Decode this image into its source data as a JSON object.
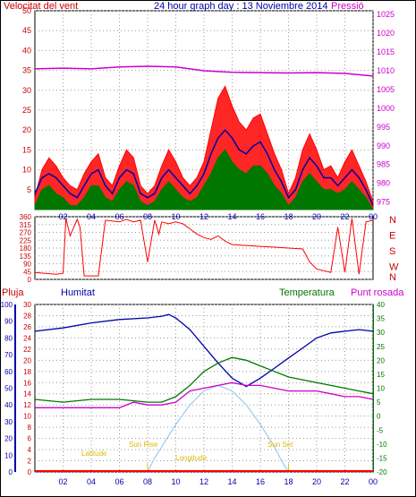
{
  "header": {
    "wind_label": "Velocitat del vent",
    "title": "24 hour graph day : 13 Noviembre 2014",
    "pressure_label": "Pressió"
  },
  "legend": {
    "rain": "Pluja",
    "humidity": "Humitat",
    "temperature": "Temperatura",
    "dewpoint": "Punt rosada"
  },
  "annotations": {
    "sunrise": "Sun Rise",
    "sunset": "Sun Set",
    "altitude": "Latitude",
    "elevation": "Longitude"
  },
  "colors": {
    "wind": "#ff0000",
    "gust_fill": "#ff0000",
    "wind_avg": "#0000aa",
    "wind_min": "#007700",
    "pressure": "#cc00cc",
    "humidity": "#0000aa",
    "temperature": "#007700",
    "dewpoint": "#cc00cc",
    "rain": "#ff0000",
    "sun": "#99ccee",
    "sun_text": "#ddbb00",
    "axis_red": "#cc0000",
    "axis_blue": "#0000aa",
    "axis_green": "#007700",
    "axis_purple": "#cc00cc",
    "grid": "#999999"
  },
  "chart_data": [
    {
      "type": "line",
      "name": "wind-pressure",
      "x_ticks": [
        "02",
        "04",
        "06",
        "08",
        "10",
        "12",
        "14",
        "16",
        "18",
        "20",
        "22",
        "00"
      ],
      "y_left_ticks": [
        5,
        10,
        15,
        20,
        25,
        30,
        35,
        40,
        45,
        50
      ],
      "y_left_range": [
        0,
        50
      ],
      "y_right_ticks": [
        975,
        980,
        985,
        990,
        995,
        1000,
        1005,
        1010,
        1015,
        1020,
        1025
      ],
      "y_right_range": [
        973,
        1026
      ],
      "gust_envelope": [
        [
          0,
          3
        ],
        [
          0.5,
          10
        ],
        [
          1,
          13
        ],
        [
          1.5,
          11
        ],
        [
          2,
          8
        ],
        [
          2.5,
          6
        ],
        [
          3,
          5
        ],
        [
          3.5,
          9
        ],
        [
          4,
          12
        ],
        [
          4.5,
          14
        ],
        [
          5,
          8
        ],
        [
          5.5,
          6
        ],
        [
          6,
          11
        ],
        [
          6.5,
          15
        ],
        [
          7,
          13
        ],
        [
          7.5,
          6
        ],
        [
          8,
          4
        ],
        [
          8.5,
          6
        ],
        [
          9,
          11
        ],
        [
          9.5,
          15
        ],
        [
          10,
          12
        ],
        [
          10.5,
          8
        ],
        [
          11,
          6
        ],
        [
          11.5,
          8
        ],
        [
          12,
          12
        ],
        [
          12.5,
          20
        ],
        [
          13,
          28
        ],
        [
          13.5,
          31
        ],
        [
          14,
          26
        ],
        [
          14.5,
          22
        ],
        [
          15,
          20
        ],
        [
          15.5,
          23
        ],
        [
          16,
          24
        ],
        [
          16.5,
          19
        ],
        [
          17,
          14
        ],
        [
          17.5,
          10
        ],
        [
          18,
          4
        ],
        [
          18.5,
          8
        ],
        [
          19,
          15
        ],
        [
          19.5,
          19
        ],
        [
          20,
          15
        ],
        [
          20.5,
          10
        ],
        [
          21,
          11
        ],
        [
          21.5,
          8
        ],
        [
          22,
          12
        ],
        [
          22.5,
          15
        ],
        [
          23,
          11
        ],
        [
          23.5,
          7
        ],
        [
          24,
          2
        ]
      ],
      "wind_avg": [
        [
          0,
          4
        ],
        [
          0.5,
          8
        ],
        [
          1,
          9
        ],
        [
          1.5,
          8
        ],
        [
          2,
          6
        ],
        [
          2.5,
          4
        ],
        [
          3,
          3
        ],
        [
          3.5,
          6
        ],
        [
          4,
          9
        ],
        [
          4.5,
          10
        ],
        [
          5,
          6
        ],
        [
          5.5,
          4
        ],
        [
          6,
          8
        ],
        [
          6.5,
          10
        ],
        [
          7,
          9
        ],
        [
          7.5,
          4
        ],
        [
          8,
          3
        ],
        [
          8.5,
          4
        ],
        [
          9,
          8
        ],
        [
          9.5,
          10
        ],
        [
          10,
          8
        ],
        [
          10.5,
          6
        ],
        [
          11,
          4
        ],
        [
          11.5,
          6
        ],
        [
          12,
          9
        ],
        [
          12.5,
          14
        ],
        [
          13,
          18
        ],
        [
          13.5,
          20
        ],
        [
          14,
          18
        ],
        [
          14.5,
          15
        ],
        [
          15,
          14
        ],
        [
          15.5,
          16
        ],
        [
          16,
          17
        ],
        [
          16.5,
          14
        ],
        [
          17,
          10
        ],
        [
          17.5,
          7
        ],
        [
          18,
          3
        ],
        [
          18.5,
          5
        ],
        [
          19,
          10
        ],
        [
          19.5,
          13
        ],
        [
          20,
          11
        ],
        [
          20.5,
          8
        ],
        [
          21,
          8
        ],
        [
          21.5,
          6
        ],
        [
          22,
          8
        ],
        [
          22.5,
          10
        ],
        [
          23,
          8
        ],
        [
          23.5,
          5
        ],
        [
          24,
          1
        ]
      ],
      "wind_min": [
        [
          0,
          1
        ],
        [
          0.5,
          5
        ],
        [
          1,
          6
        ],
        [
          1.5,
          4
        ],
        [
          2,
          3
        ],
        [
          2.5,
          1
        ],
        [
          3,
          1
        ],
        [
          3.5,
          3
        ],
        [
          4,
          6
        ],
        [
          4.5,
          6
        ],
        [
          5,
          3
        ],
        [
          5.5,
          2
        ],
        [
          6,
          5
        ],
        [
          6.5,
          7
        ],
        [
          7,
          6
        ],
        [
          7.5,
          2
        ],
        [
          8,
          1
        ],
        [
          8.5,
          2
        ],
        [
          9,
          5
        ],
        [
          9.5,
          7
        ],
        [
          10,
          5
        ],
        [
          10.5,
          3
        ],
        [
          11,
          2
        ],
        [
          11.5,
          3
        ],
        [
          12,
          6
        ],
        [
          12.5,
          9
        ],
        [
          13,
          13
        ],
        [
          13.5,
          15
        ],
        [
          14,
          12
        ],
        [
          14.5,
          10
        ],
        [
          15,
          9
        ],
        [
          15.5,
          11
        ],
        [
          16,
          11
        ],
        [
          16.5,
          9
        ],
        [
          17,
          6
        ],
        [
          17.5,
          4
        ],
        [
          18,
          1
        ],
        [
          18.5,
          3
        ],
        [
          19,
          7
        ],
        [
          19.5,
          9
        ],
        [
          20,
          7
        ],
        [
          20.5,
          5
        ],
        [
          21,
          5
        ],
        [
          21.5,
          4
        ],
        [
          22,
          5
        ],
        [
          22.5,
          7
        ],
        [
          23,
          5
        ],
        [
          23.5,
          3
        ],
        [
          24,
          0
        ]
      ],
      "pressure": [
        [
          0,
          1010.5
        ],
        [
          2,
          1010.7
        ],
        [
          4,
          1010.5
        ],
        [
          6,
          1011
        ],
        [
          8,
          1011.2
        ],
        [
          10,
          1011
        ],
        [
          12,
          1010
        ],
        [
          14,
          1009.6
        ],
        [
          16,
          1009.5
        ],
        [
          18,
          1009.4
        ],
        [
          20,
          1009.5
        ],
        [
          22,
          1009.3
        ],
        [
          24,
          1008.6
        ]
      ]
    },
    {
      "type": "line",
      "name": "wind-direction",
      "y_right_labels": [
        "N",
        "W",
        "S",
        "E",
        "N"
      ],
      "y_left_ticks": [
        0,
        45,
        90,
        135,
        180,
        225,
        270,
        315,
        360
      ],
      "y_left_range": [
        0,
        360
      ],
      "direction": [
        [
          0,
          40
        ],
        [
          1.5,
          30
        ],
        [
          2,
          35
        ],
        [
          2.2,
          350
        ],
        [
          2.5,
          250
        ],
        [
          3,
          345
        ],
        [
          3.2,
          300
        ],
        [
          3.5,
          20
        ],
        [
          4.5,
          20
        ],
        [
          5,
          340
        ],
        [
          6,
          330
        ],
        [
          6.5,
          345
        ],
        [
          7,
          330
        ],
        [
          7.5,
          340
        ],
        [
          8,
          100
        ],
        [
          8.5,
          340
        ],
        [
          8.8,
          260
        ],
        [
          9,
          330
        ],
        [
          9.5,
          320
        ],
        [
          10,
          330
        ],
        [
          10.5,
          320
        ],
        [
          11,
          290
        ],
        [
          11.5,
          260
        ],
        [
          12,
          240
        ],
        [
          12.5,
          230
        ],
        [
          13,
          250
        ],
        [
          13.5,
          220
        ],
        [
          14,
          200
        ],
        [
          15,
          195
        ],
        [
          16,
          190
        ],
        [
          17,
          185
        ],
        [
          18,
          180
        ],
        [
          19,
          175
        ],
        [
          19.5,
          100
        ],
        [
          20,
          60
        ],
        [
          20.5,
          50
        ],
        [
          21,
          40
        ],
        [
          21.5,
          300
        ],
        [
          22,
          40
        ],
        [
          22.5,
          350
        ],
        [
          23,
          30
        ],
        [
          23.5,
          330
        ],
        [
          24,
          340
        ]
      ]
    },
    {
      "type": "line",
      "name": "humidity-temperature-rain",
      "y_hum_ticks": [
        0,
        10,
        20,
        30,
        40,
        50,
        60,
        70,
        80,
        90,
        100
      ],
      "y_hum_range": [
        0,
        100
      ],
      "y_rain_ticks": [
        0,
        2,
        4,
        6,
        8,
        10,
        12,
        14,
        16,
        18,
        20,
        22,
        24,
        26,
        28,
        30
      ],
      "y_rain_range": [
        0,
        30
      ],
      "y_temp_ticks": [
        -20,
        -15,
        -10,
        -5,
        0,
        5,
        10,
        15,
        20,
        25,
        30,
        35,
        40
      ],
      "y_temp_range": [
        -20,
        40
      ],
      "humidity": [
        [
          0,
          84
        ],
        [
          2,
          86
        ],
        [
          4,
          89
        ],
        [
          6,
          91
        ],
        [
          8,
          92
        ],
        [
          9,
          93
        ],
        [
          9.5,
          94
        ],
        [
          10,
          92
        ],
        [
          11,
          85
        ],
        [
          12,
          75
        ],
        [
          13,
          65
        ],
        [
          14,
          56
        ],
        [
          15,
          51
        ],
        [
          16,
          56
        ],
        [
          17,
          62
        ],
        [
          18,
          68
        ],
        [
          19,
          74
        ],
        [
          20,
          80
        ],
        [
          21,
          83
        ],
        [
          22,
          84
        ],
        [
          23,
          85
        ],
        [
          24,
          84
        ]
      ],
      "temperature": [
        [
          0,
          6
        ],
        [
          2,
          5
        ],
        [
          4,
          6
        ],
        [
          6,
          6
        ],
        [
          8,
          5
        ],
        [
          9,
          5
        ],
        [
          10,
          7
        ],
        [
          11,
          11
        ],
        [
          12,
          16
        ],
        [
          13,
          19
        ],
        [
          14,
          21
        ],
        [
          15,
          20
        ],
        [
          16,
          18
        ],
        [
          17,
          16
        ],
        [
          18,
          14
        ],
        [
          19,
          13
        ],
        [
          20,
          12
        ],
        [
          21,
          11
        ],
        [
          22,
          10
        ],
        [
          23,
          9
        ],
        [
          24,
          8
        ]
      ],
      "dewpoint": [
        [
          0,
          3
        ],
        [
          2,
          3
        ],
        [
          4,
          3
        ],
        [
          6,
          3
        ],
        [
          7,
          5
        ],
        [
          8,
          4
        ],
        [
          9,
          4
        ],
        [
          10,
          5
        ],
        [
          11,
          9
        ],
        [
          12,
          10
        ],
        [
          13,
          11
        ],
        [
          14,
          12
        ],
        [
          15,
          11
        ],
        [
          16,
          11
        ],
        [
          17,
          10
        ],
        [
          18,
          9
        ],
        [
          19,
          9
        ],
        [
          20,
          9
        ],
        [
          21,
          8
        ],
        [
          22,
          7
        ],
        [
          23,
          7
        ],
        [
          24,
          6
        ]
      ],
      "sun_elevation": [
        [
          8,
          0
        ],
        [
          8.5,
          5
        ],
        [
          9,
          9
        ],
        [
          10,
          17
        ],
        [
          11,
          24
        ],
        [
          12,
          29
        ],
        [
          13,
          31
        ],
        [
          14,
          29
        ],
        [
          15,
          24
        ],
        [
          16,
          17
        ],
        [
          17,
          9
        ],
        [
          17.5,
          4
        ],
        [
          18,
          0
        ]
      ],
      "rain": [
        [
          0,
          0
        ],
        [
          24,
          0
        ]
      ]
    }
  ]
}
